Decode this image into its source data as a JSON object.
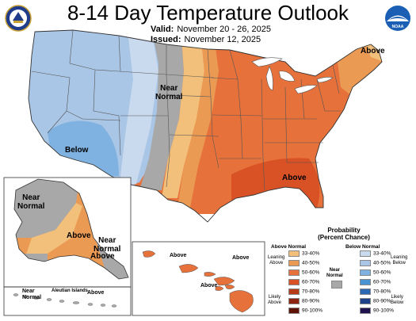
{
  "header": {
    "title": "8-14 Day Temperature Outlook",
    "valid_label": "Valid:",
    "valid_dates": "November 20 - 26, 2025",
    "issued_label": "Issued:",
    "issued_date": "November 12, 2025"
  },
  "logos": {
    "left": "commerce-seal-icon",
    "right": "noaa-logo-icon"
  },
  "map_labels": {
    "conus_above_ne": "Above",
    "conus_near_normal": "Near\nNormal",
    "conus_below": "Below",
    "conus_above_se": "Above",
    "alaska_near_normal_n": "Near\nNormal",
    "alaska_above": "Above",
    "alaska_near_normal_se": "Near\nNormal",
    "alaska_above_se": "Above",
    "alaska_near_normal_sw": "Near\nNormal",
    "aleutian_islands": "Aleutian Islands",
    "alaska_above_aleutian": "Above",
    "hawaii_above_1": "Above",
    "hawaii_above_2": "Above",
    "hawaii_above_3": "Above"
  },
  "legend": {
    "title": "Probability\n(Percent Chance)",
    "above_header": "Above Normal",
    "below_header": "Below Normal",
    "near_normal_label": "Near\nNormal",
    "leaning_above": "Leaning\nAbove",
    "likely_above": "Likely\nAbove",
    "leaning_below": "Leaning\nBelow",
    "likely_below": "Likely\nBelow",
    "ranges": [
      "33-40%",
      "40-50%",
      "50-60%",
      "60-70%",
      "70-80%",
      "80-90%",
      "90-100%"
    ],
    "above_colors": [
      "#f2c07a",
      "#eb9a54",
      "#e7713a",
      "#d85225",
      "#b83b18",
      "#8e2410",
      "#5e1208"
    ],
    "below_colors": [
      "#c9d9ee",
      "#a9c6e6",
      "#7fb2e0",
      "#4a93d3",
      "#2a68b3",
      "#1d4189",
      "#21124f"
    ],
    "near_color": "#a8a8a8"
  },
  "colors": {
    "above_33": "#f2c07a",
    "above_40": "#eb9a54",
    "above_50": "#e7713a",
    "above_60": "#d85225",
    "below_33": "#c9d9ee",
    "below_40": "#a9c6e6",
    "below_50": "#7fb2e0",
    "near": "#a8a8a8",
    "water_outline": "#888888"
  }
}
